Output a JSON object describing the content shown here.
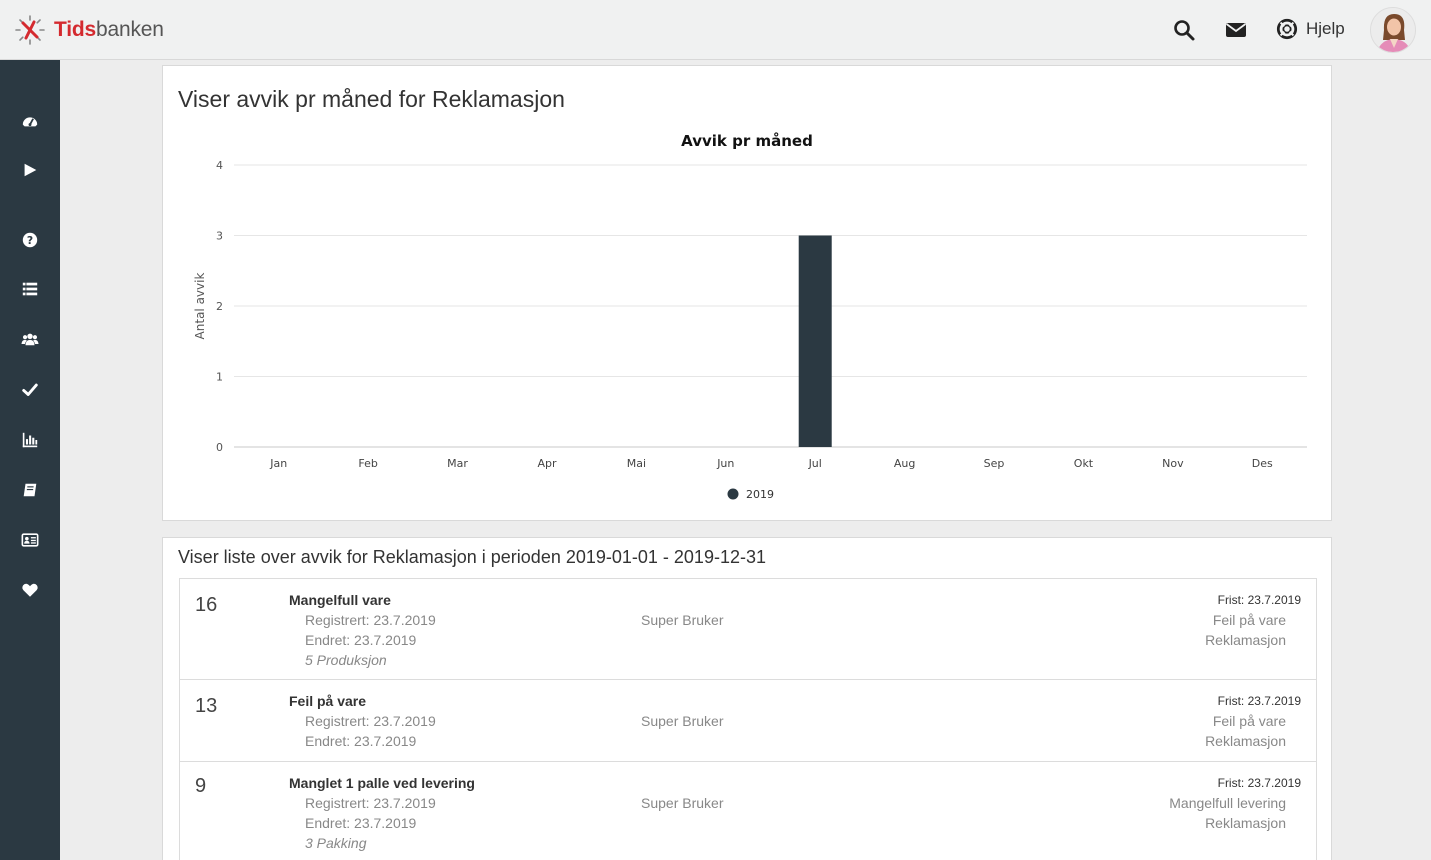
{
  "brand": {
    "name_part1": "Tids",
    "name_part2": "banken",
    "accent": "#d42a2f"
  },
  "header": {
    "search_icon": "search-icon",
    "mail_icon": "envelope-icon",
    "help_icon": "lifebuoy-icon",
    "help_label": "Hjelp"
  },
  "sidebar": {
    "bg": "#2b3942",
    "items": [
      {
        "icon": "dashboard-icon"
      },
      {
        "icon": "play-icon"
      },
      {
        "icon": "question-icon"
      },
      {
        "icon": "list-icon"
      },
      {
        "icon": "users-icon"
      },
      {
        "icon": "check-icon"
      },
      {
        "icon": "bar-chart-icon"
      },
      {
        "icon": "book-icon"
      },
      {
        "icon": "id-card-icon"
      },
      {
        "icon": "heart-icon"
      }
    ]
  },
  "chart_panel": {
    "title": "Viser avvik pr måned for Reklamasjon"
  },
  "chart_data": {
    "type": "bar",
    "title": "Avvik pr måned",
    "ylabel": "Antal avvik",
    "xlabel": "",
    "categories": [
      "Jan",
      "Feb",
      "Mar",
      "Apr",
      "Mai",
      "Jun",
      "Jul",
      "Aug",
      "Sep",
      "Okt",
      "Nov",
      "Des"
    ],
    "series": [
      {
        "name": "2019",
        "values": [
          0,
          0,
          0,
          0,
          0,
          0,
          3,
          0,
          0,
          0,
          0,
          0
        ],
        "color": "#2b3942"
      }
    ],
    "ylim": [
      0,
      4
    ],
    "yticks": [
      0,
      1,
      2,
      3,
      4
    ],
    "grid": true,
    "legend": "bottom-center"
  },
  "list_panel": {
    "title": "Viser liste over avvik for Reklamasjon i perioden 2019-01-01 - 2019-12-31",
    "rows": [
      {
        "num": "16",
        "title": "Mangelfull vare",
        "registered": "Registrert: 23.7.2019",
        "changed": "Endret: 23.7.2019",
        "dept": "5 Produksjon",
        "user": "Super Bruker",
        "frist": "Frist: 23.7.2019",
        "type": "Feil på vare",
        "category": "Reklamasjon"
      },
      {
        "num": "13",
        "title": "Feil på vare",
        "registered": "Registrert: 23.7.2019",
        "changed": "Endret: 23.7.2019",
        "dept": "",
        "user": "Super Bruker",
        "frist": "Frist: 23.7.2019",
        "type": "Feil på vare",
        "category": "Reklamasjon"
      },
      {
        "num": "9",
        "title": "Manglet 1 palle ved levering",
        "registered": "Registrert: 23.7.2019",
        "changed": "Endret: 23.7.2019",
        "dept": "3 Pakking",
        "user": "Super Bruker",
        "frist": "Frist: 23.7.2019",
        "type": "Mangelfull levering",
        "category": "Reklamasjon"
      }
    ]
  }
}
